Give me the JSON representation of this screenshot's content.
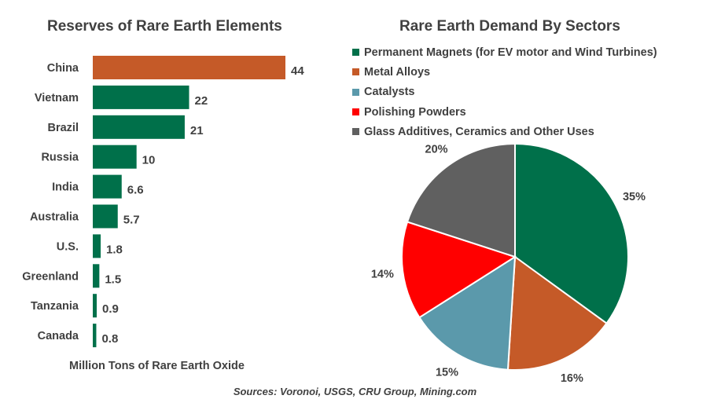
{
  "chart_data": [
    {
      "type": "bar",
      "orientation": "horizontal",
      "title": "Reserves of Rare Earth Elements",
      "xlabel": "Million Tons of Rare Earth Oxide",
      "categories": [
        "China",
        "Vietnam",
        "Brazil",
        "Russia",
        "India",
        "Australia",
        "U.S.",
        "Greenland",
        "Tanzania",
        "Canada"
      ],
      "values": [
        44,
        22,
        21,
        10,
        6.6,
        5.7,
        1.8,
        1.5,
        0.9,
        0.8
      ],
      "value_labels": [
        "44",
        "22",
        "21",
        "10",
        "6.6",
        "5.7",
        "1.8",
        "1.5",
        "0.9",
        "0.8"
      ],
      "colors": [
        "#C55A28",
        "#00704A",
        "#00704A",
        "#00704A",
        "#00704A",
        "#00704A",
        "#00704A",
        "#00704A",
        "#00704A",
        "#00704A"
      ],
      "data_labels": true,
      "grid": false
    },
    {
      "type": "pie",
      "title": "Rare Earth Demand By Sectors",
      "legend_position": "top",
      "slices": [
        {
          "name": "Permanent Magnets (for EV motor and Wind Turbines)",
          "value": 35,
          "label": "35%",
          "color": "#00704A"
        },
        {
          "name": "Metal Alloys",
          "value": 16,
          "label": "16%",
          "color": "#C55A28"
        },
        {
          "name": "Catalysts",
          "value": 15,
          "label": "15%",
          "color": "#5B99AB"
        },
        {
          "name": "Polishing Powders",
          "value": 14,
          "label": "14%",
          "color": "#FF0000"
        },
        {
          "name": "Glass Additives, Ceramics and Other Uses",
          "value": 20,
          "label": "20%",
          "color": "#606060"
        }
      ]
    }
  ],
  "source": "Sources: Voronoi, USGS, CRU Group, Mining.com"
}
